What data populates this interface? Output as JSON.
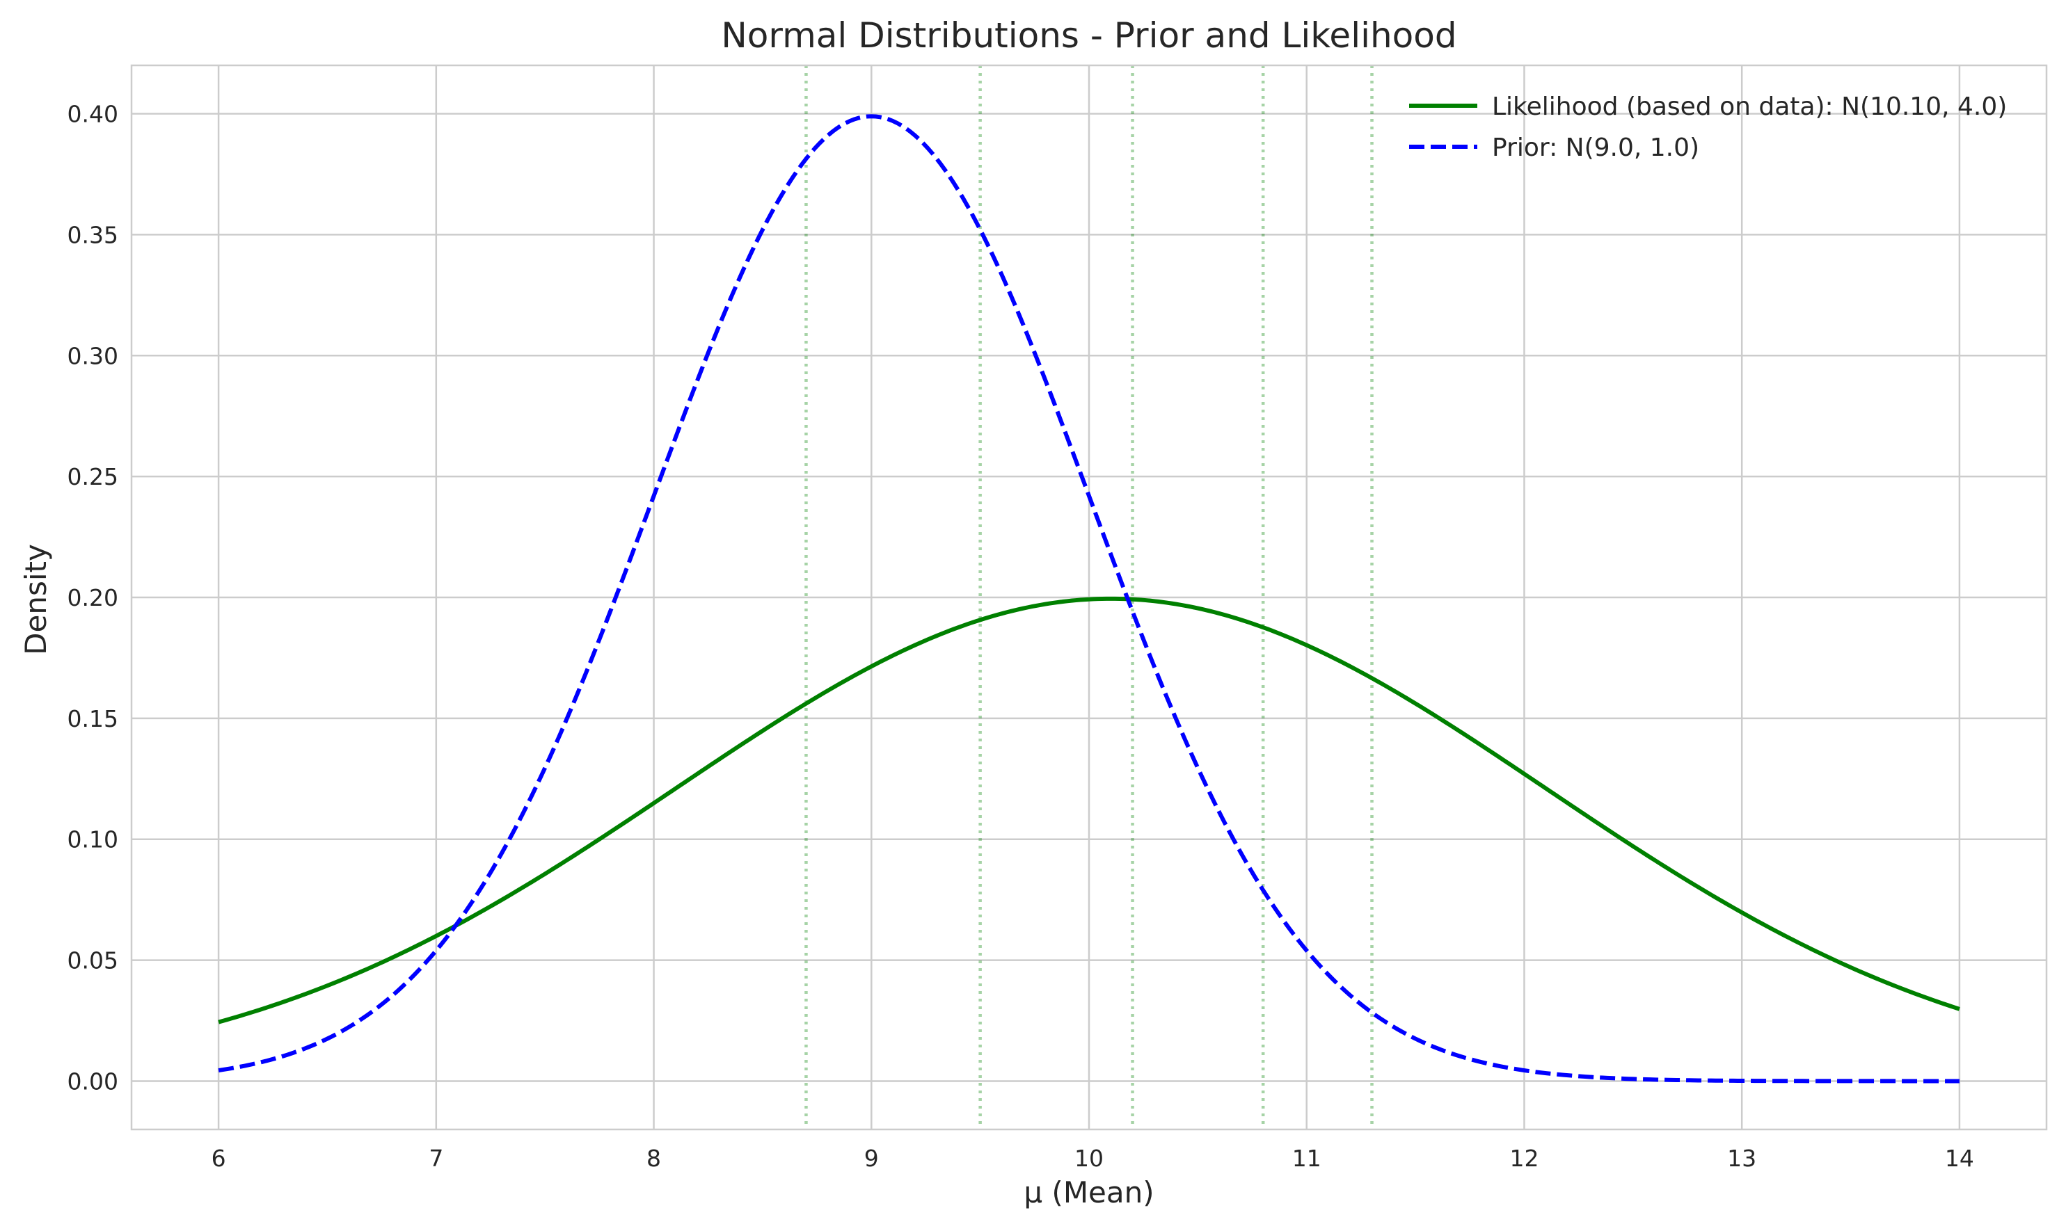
{
  "chart_data": {
    "type": "line",
    "title": "Normal Distributions - Prior and Likelihood",
    "xlabel": "μ (Mean)",
    "ylabel": "Density",
    "xlim": [
      5.6,
      14.4
    ],
    "ylim": [
      -0.02,
      0.42
    ],
    "xticks": [
      6,
      7,
      8,
      9,
      10,
      11,
      12,
      13,
      14
    ],
    "yticks": [
      0.0,
      0.05,
      0.1,
      0.15,
      0.2,
      0.25,
      0.3,
      0.35,
      0.4
    ],
    "xtick_labels": [
      "6",
      "7",
      "8",
      "9",
      "10",
      "11",
      "12",
      "13",
      "14"
    ],
    "ytick_labels": [
      "0.00",
      "0.05",
      "0.10",
      "0.15",
      "0.20",
      "0.25",
      "0.30",
      "0.35",
      "0.40"
    ],
    "grid": true,
    "legend_position": "top-right",
    "x_range": [
      6,
      14
    ],
    "series": [
      {
        "name": "Likelihood (based on data): N(10.10, 4.0)",
        "distribution": "normal",
        "mean": 10.1,
        "variance": 4.0,
        "color": "#008000",
        "style": "solid"
      },
      {
        "name": "Prior: N(9.0, 1.0)",
        "distribution": "normal",
        "mean": 9.0,
        "variance": 1.0,
        "color": "#0000ff",
        "style": "dashed"
      }
    ],
    "vertical_lines": {
      "x": [
        8.7,
        9.5,
        10.2,
        10.8,
        11.3
      ],
      "color": "#008000",
      "style": "dotted"
    }
  }
}
